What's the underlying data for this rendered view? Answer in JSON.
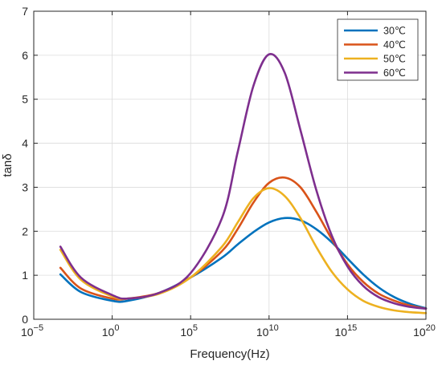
{
  "chart_data": {
    "type": "line",
    "xlabel": "Frequency(Hz)",
    "ylabel": "tanδ",
    "x_scale": "log",
    "xlim": [
      1e-05,
      1e+20
    ],
    "ylim": [
      0,
      7
    ],
    "grid": true,
    "legend_position": "top-right",
    "x_ticks": [
      {
        "value": 1e-05,
        "base": "10",
        "exp": "−5"
      },
      {
        "value": 1,
        "base": "10",
        "exp": "0"
      },
      {
        "value": 100000.0,
        "base": "10",
        "exp": "5"
      },
      {
        "value": 10000000000.0,
        "base": "10",
        "exp": "10"
      },
      {
        "value": 1000000000000000.0,
        "base": "10",
        "exp": "15"
      },
      {
        "value": 1e+20,
        "base": "10",
        "exp": "20"
      }
    ],
    "y_ticks": [
      "0",
      "1",
      "2",
      "3",
      "4",
      "5",
      "6",
      "7"
    ],
    "series": [
      {
        "name": "30℃",
        "color": "#0072BD",
        "x": [
          0.0005,
          0.01,
          1,
          10,
          1000.0,
          100000.0,
          10000000.0,
          100000000.0,
          1000000000.0,
          10000000000.0,
          100000000000.0,
          1000000000000.0,
          10000000000000.0,
          100000000000000.0,
          1000000000000000.0,
          1e+16,
          1e+17,
          1e+18,
          1e+19,
          1e+20
        ],
        "y": [
          1.02,
          0.62,
          0.42,
          0.42,
          0.6,
          0.95,
          1.4,
          1.7,
          1.98,
          2.2,
          2.3,
          2.25,
          2.05,
          1.75,
          1.38,
          1.02,
          0.72,
          0.5,
          0.35,
          0.25
        ]
      },
      {
        "name": "40℃",
        "color": "#D95319",
        "x": [
          0.0005,
          0.01,
          1,
          10,
          1000.0,
          100000.0,
          10000000.0,
          100000000.0,
          1000000000.0,
          10000000000.0,
          100000000000.0,
          1000000000000.0,
          10000000000000.0,
          100000000000000.0,
          1000000000000000.0,
          1e+16,
          1e+17,
          1e+18,
          1e+19,
          1e+20
        ],
        "y": [
          1.17,
          0.7,
          0.47,
          0.47,
          0.6,
          0.95,
          1.55,
          2.05,
          2.65,
          3.1,
          3.22,
          3.0,
          2.45,
          1.82,
          1.25,
          0.85,
          0.58,
          0.42,
          0.31,
          0.24
        ]
      },
      {
        "name": "50℃",
        "color": "#EDB120",
        "x": [
          0.0005,
          0.01,
          1,
          10,
          1000.0,
          100000.0,
          10000000.0,
          100000000.0,
          1000000000.0,
          10000000000.0,
          100000000000.0,
          1000000000000.0,
          10000000000000.0,
          100000000000000.0,
          1000000000000000.0,
          1e+16,
          1e+17,
          1e+18,
          1e+19,
          1e+20
        ],
        "y": [
          1.58,
          0.9,
          0.52,
          0.47,
          0.58,
          0.95,
          1.65,
          2.2,
          2.75,
          2.98,
          2.8,
          2.3,
          1.65,
          1.08,
          0.68,
          0.42,
          0.28,
          0.2,
          0.16,
          0.14
        ]
      },
      {
        "name": "60℃",
        "color": "#7E2F8E",
        "x": [
          0.0005,
          0.01,
          1,
          10,
          1000.0,
          100000.0,
          10000000.0,
          100000000.0,
          1000000000.0,
          10000000000.0,
          100000000000.0,
          1000000000000.0,
          10000000000000.0,
          100000000000000.0,
          1000000000000000.0,
          1e+16,
          1e+17,
          1e+18,
          1e+19,
          1e+20
        ],
        "y": [
          1.65,
          0.95,
          0.55,
          0.47,
          0.6,
          1.05,
          2.3,
          3.8,
          5.3,
          6.02,
          5.6,
          4.3,
          2.95,
          1.9,
          1.2,
          0.76,
          0.5,
          0.36,
          0.28,
          0.24
        ]
      }
    ]
  }
}
